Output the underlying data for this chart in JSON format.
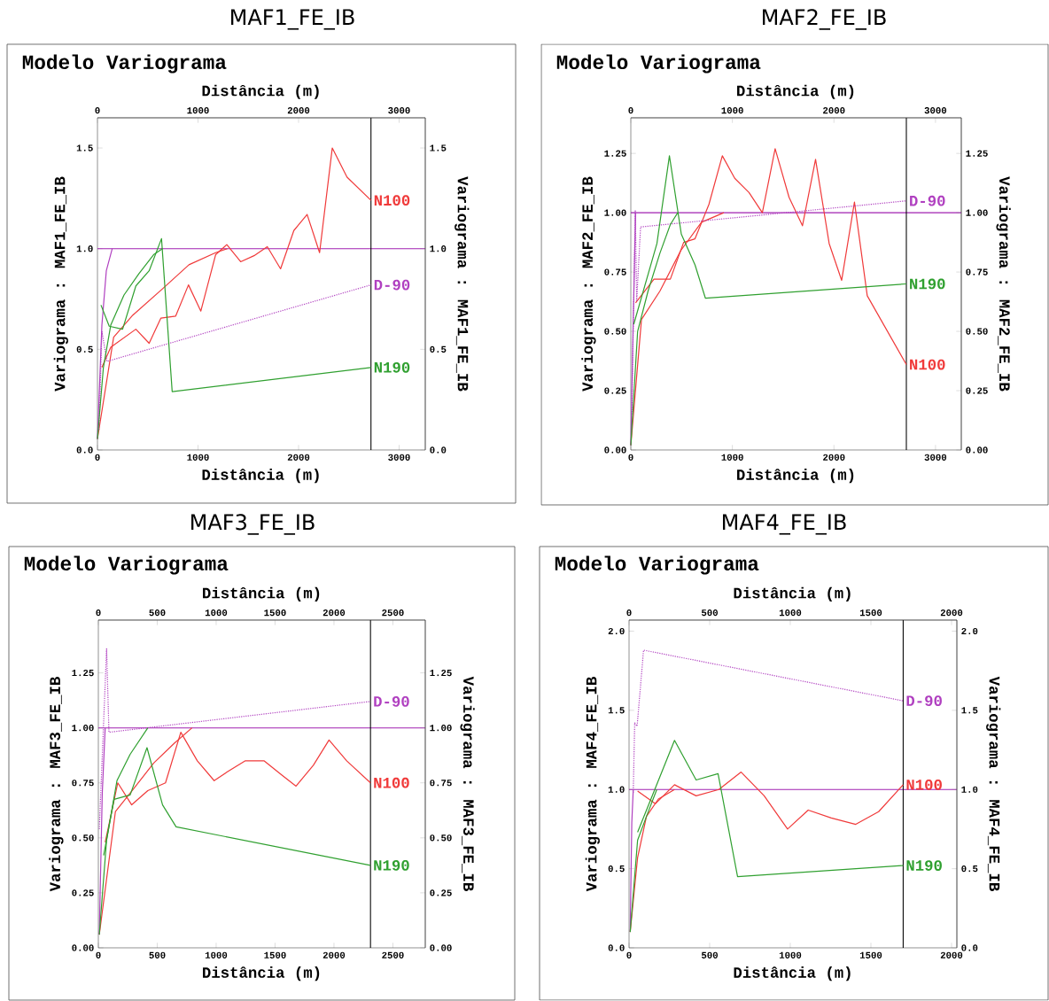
{
  "chart_data": [
    {
      "type": "line",
      "title": "MAF1_FE_IB",
      "subtitle": "Modelo Variograma",
      "xlabel": "Distância (m)",
      "x2label": "Distância (m)",
      "ylabel": "Variograma : MAF1_FE_IB",
      "y2label": "Variograma : MAF1_FE_IB",
      "xlim": [
        0,
        3260
      ],
      "xticks": [
        0,
        1000,
        2000,
        3000
      ],
      "x2lim": [
        0,
        3260
      ],
      "x2ticks": [
        0,
        1000,
        2000,
        3000
      ],
      "ylim": [
        0,
        1.65
      ],
      "yticks": [
        {
          "value": 0,
          "label": "0.0"
        },
        {
          "value": 0.5,
          "label": "0.5"
        },
        {
          "value": 1,
          "label": "1.0"
        },
        {
          "value": 1.5,
          "label": "1.5"
        }
      ],
      "y2lim": [
        0,
        1.65
      ],
      "y2ticks": [
        {
          "value": 0,
          "label": "0.0"
        },
        {
          "value": 0.5,
          "label": "0.5"
        },
        {
          "value": 1,
          "label": "1.0"
        },
        {
          "value": 1.5,
          "label": "1.5"
        }
      ],
      "ref_lines": [
        {
          "axis": "y",
          "value": 1,
          "color": "#a020b0"
        },
        {
          "axis": "x",
          "value": 2720,
          "color": "#000000"
        }
      ],
      "series": [
        {
          "name": "N100",
          "color": "#f03a3a",
          "x": [
            44,
            132,
            382,
            514,
            631,
            778,
            905,
            1028,
            1175,
            1286,
            1424,
            1557,
            1689,
            1821,
            1953,
            2085,
            2209,
            2335,
            2482,
            2720
          ],
          "values": [
            0.41,
            0.51,
            0.6,
            0.53,
            0.655,
            0.665,
            0.82,
            0.69,
            0.97,
            1.02,
            0.935,
            0.965,
            1.01,
            0.9,
            1.09,
            1.17,
            0.98,
            1.5,
            1.355,
            1.24
          ]
        },
        {
          "color": "#f03a3a",
          "x": [
            0,
            161,
            352,
            646,
            910,
            1175,
            1292
          ],
          "values": [
            0.055,
            0.56,
            0.67,
            0.8,
            0.92,
            0.98,
            1.0
          ]
        },
        {
          "name": "D-90",
          "color": "#b040c0",
          "line_style": "dotted",
          "x": [
            15,
            44,
            94,
            2720
          ],
          "values": [
            0.1,
            0.59,
            0.44,
            0.82
          ]
        },
        {
          "color": "#b040c0",
          "x": [
            0,
            44,
            88,
            147
          ],
          "values": [
            0.055,
            0.62,
            0.89,
            1.0
          ]
        },
        {
          "name": "N190",
          "color": "#30a030",
          "x": [
            35,
            117,
            250,
            382,
            514,
            637,
            743,
            2720
          ],
          "values": [
            0.72,
            0.615,
            0.6,
            0.815,
            0.89,
            1.05,
            0.29,
            0.41
          ]
        },
        {
          "color": "#30a030",
          "x": [
            0,
            59,
            132,
            264,
            411,
            558,
            646
          ],
          "values": [
            0.055,
            0.41,
            0.62,
            0.77,
            0.875,
            0.97,
            1.0
          ]
        }
      ]
    },
    {
      "type": "line",
      "title": "MAF2_FE_IB",
      "subtitle": "Modelo Variograma",
      "xlabel": "Distância (m)",
      "x2label": "Distância (m)",
      "ylabel": "Variograma : MAF2_FE_IB",
      "y2label": "Variograma : MAF2_FE_IB",
      "xlim": [
        0,
        3254
      ],
      "xticks": [
        0,
        1000,
        2000,
        3000
      ],
      "x2lim": [
        0,
        3254
      ],
      "x2ticks": [
        0,
        1000,
        2000,
        3000
      ],
      "ylim": [
        0,
        1.4
      ],
      "yticks": [
        {
          "value": 0,
          "label": "0.00"
        },
        {
          "value": 0.25,
          "label": "0.25"
        },
        {
          "value": 0.5,
          "label": "0.50"
        },
        {
          "value": 0.75,
          "label": "0.75"
        },
        {
          "value": 1,
          "label": "1.00"
        },
        {
          "value": 1.25,
          "label": "1.25"
        }
      ],
      "y2lim": [
        0,
        1.4
      ],
      "y2ticks": [
        {
          "value": 0,
          "label": "0.00"
        },
        {
          "value": 0.25,
          "label": "0.25"
        },
        {
          "value": 0.5,
          "label": "0.50"
        },
        {
          "value": 0.75,
          "label": "0.75"
        },
        {
          "value": 1,
          "label": "1.00"
        },
        {
          "value": 1.25,
          "label": "1.25"
        }
      ],
      "ref_lines": [
        {
          "axis": "y",
          "value": 1,
          "color": "#a020b0"
        },
        {
          "axis": "x",
          "value": 2713,
          "color": "#000000"
        }
      ],
      "series": [
        {
          "name": "N100",
          "color": "#f03a3a",
          "x": [
            47,
            228,
            389,
            520,
            632,
            769,
            901,
            1023,
            1164,
            1295,
            1421,
            1558,
            1690,
            1819,
            1953,
            2076,
            2202,
            2328,
            2713
          ],
          "values": [
            0.62,
            0.72,
            0.72,
            0.875,
            0.89,
            1.035,
            1.24,
            1.145,
            1.085,
            1.0,
            1.27,
            1.065,
            0.945,
            1.225,
            0.87,
            0.715,
            1.045,
            0.65,
            0.36
          ]
        },
        {
          "color": "#f03a3a",
          "x": [
            0,
            105,
            287,
            491,
            696,
            915
          ],
          "values": [
            0.02,
            0.55,
            0.67,
            0.84,
            0.96,
            1.0
          ]
        },
        {
          "name": "D-90",
          "color": "#b040c0",
          "line_style": "dotted",
          "x": [
            9,
            44,
            58,
            96,
            2713
          ],
          "values": [
            0.15,
            1.01,
            0.63,
            0.94,
            1.05
          ]
        },
        {
          "color": "#b040c0",
          "x": [
            0,
            23,
            47
          ],
          "values": [
            0.02,
            0.53,
            1.0
          ]
        },
        {
          "name": "N190",
          "color": "#30a030",
          "x": [
            29,
            257,
            380,
            497,
            632,
            734,
            2713
          ],
          "values": [
            0.53,
            0.87,
            1.24,
            0.91,
            0.78,
            0.64,
            0.7
          ]
        },
        {
          "color": "#30a030",
          "x": [
            0,
            67,
            170,
            287,
            389,
            462
          ],
          "values": [
            0.02,
            0.5,
            0.67,
            0.83,
            0.95,
            1.0
          ]
        }
      ]
    },
    {
      "type": "line",
      "title": "MAF3_FE_IB",
      "subtitle": "Modelo Variograma",
      "xlabel": "Distância (m)",
      "x2label": "Distância (m)",
      "ylabel": "Variograma : MAF3_FE_IB",
      "y2label": "Variograma : MAF3_FE_IB",
      "xlim": [
        0,
        2775
      ],
      "xticks": [
        0,
        500,
        1000,
        1500,
        2000,
        2500
      ],
      "x2lim": [
        0,
        2775
      ],
      "x2ticks": [
        0,
        500,
        1000,
        1500,
        2000,
        2500
      ],
      "ylim": [
        0,
        1.49
      ],
      "yticks": [
        {
          "value": 0,
          "label": "0.00"
        },
        {
          "value": 0.25,
          "label": "0.25"
        },
        {
          "value": 0.5,
          "label": "0.50"
        },
        {
          "value": 0.75,
          "label": "0.75"
        },
        {
          "value": 1,
          "label": "1.00"
        },
        {
          "value": 1.25,
          "label": "1.25"
        }
      ],
      "y2lim": [
        0,
        1.49
      ],
      "y2ticks": [
        {
          "value": 0,
          "label": "0.00"
        },
        {
          "value": 0.25,
          "label": "0.25"
        },
        {
          "value": 0.5,
          "label": "0.50"
        },
        {
          "value": 0.75,
          "label": "0.75"
        },
        {
          "value": 1,
          "label": "1.00"
        },
        {
          "value": 1.25,
          "label": "1.25"
        }
      ],
      "ref_lines": [
        {
          "axis": "y",
          "value": 1,
          "color": "#a020b0"
        },
        {
          "axis": "x",
          "value": 2310,
          "color": "#000000"
        }
      ],
      "series": [
        {
          "name": "N100",
          "color": "#f03a3a",
          "x": [
            58,
            165,
            283,
            420,
            570,
            700,
            840,
            983,
            1095,
            1245,
            1408,
            1558,
            1678,
            1825,
            1958,
            2108,
            2310
          ],
          "values": [
            0.48,
            0.75,
            0.65,
            0.715,
            0.75,
            0.98,
            0.85,
            0.76,
            0.8,
            0.85,
            0.85,
            0.785,
            0.735,
            0.83,
            0.945,
            0.85,
            0.75
          ]
        },
        {
          "color": "#f03a3a",
          "x": [
            8,
            145,
            295,
            470,
            645,
            795
          ],
          "values": [
            0.06,
            0.62,
            0.72,
            0.84,
            0.93,
            1.0
          ]
        },
        {
          "name": "D-90",
          "color": "#b040c0",
          "line_style": "dotted",
          "x": [
            8,
            70,
            90,
            2310
          ],
          "values": [
            0.54,
            1.36,
            0.98,
            1.12
          ]
        },
        {
          "color": "#b040c0",
          "x": [
            8,
            33,
            58
          ],
          "values": [
            0.06,
            0.7,
            1.0
          ]
        },
        {
          "name": "N190",
          "color": "#30a030",
          "x": [
            45,
            133,
            270,
            413,
            545,
            660,
            2310
          ],
          "values": [
            0.42,
            0.675,
            0.695,
            0.91,
            0.65,
            0.55,
            0.375
          ]
        },
        {
          "color": "#30a030",
          "x": [
            8,
            70,
            158,
            270,
            420
          ],
          "values": [
            0.06,
            0.49,
            0.76,
            0.88,
            1.0
          ]
        }
      ]
    },
    {
      "type": "line",
      "title": "MAF4_FE_IB",
      "subtitle": "Modelo Variograma",
      "xlabel": "Distância (m)",
      "x2label": "Distância (m)",
      "ylabel": "Variograma : MAF4_FE_IB",
      "y2label": "Variograma : MAF4_FE_IB",
      "xlim": [
        0,
        2033
      ],
      "xticks": [
        0,
        500,
        1000,
        1500,
        2000
      ],
      "x2lim": [
        0,
        2033
      ],
      "x2ticks": [
        0,
        500,
        1000,
        1500,
        2000
      ],
      "ylim": [
        0,
        2.07
      ],
      "yticks": [
        {
          "value": 0,
          "label": "0.0"
        },
        {
          "value": 0.5,
          "label": "0.5"
        },
        {
          "value": 1,
          "label": "1.0"
        },
        {
          "value": 1.5,
          "label": "1.5"
        },
        {
          "value": 2,
          "label": "2.0"
        }
      ],
      "y2lim": [
        0,
        2.07
      ],
      "y2ticks": [
        {
          "value": 0,
          "label": "0.0"
        },
        {
          "value": 0.5,
          "label": "0.5"
        },
        {
          "value": 1,
          "label": "1.0"
        },
        {
          "value": 1.5,
          "label": "1.5"
        },
        {
          "value": 2,
          "label": "2.0"
        }
      ],
      "ref_lines": [
        {
          "axis": "y",
          "value": 1,
          "color": "#a020b0"
        },
        {
          "axis": "x",
          "value": 1700,
          "color": "#000000"
        }
      ],
      "series": [
        {
          "name": "N100",
          "color": "#f03a3a",
          "x": [
            53,
            163,
            282,
            416,
            557,
            695,
            838,
            983,
            1111,
            1254,
            1406,
            1548,
            1700
          ],
          "values": [
            0.99,
            0.91,
            1.03,
            0.96,
            1.0,
            1.11,
            0.96,
            0.75,
            0.87,
            0.82,
            0.78,
            0.86,
            1.03
          ]
        },
        {
          "color": "#f03a3a",
          "x": [
            7,
            53,
            108,
            182,
            282
          ],
          "values": [
            0.1,
            0.57,
            0.83,
            0.94,
            1.0
          ]
        },
        {
          "name": "D-90",
          "color": "#b040c0",
          "line_style": "dotted",
          "x": [
            26,
            35,
            50,
            90,
            1700
          ],
          "values": [
            0.98,
            1.42,
            1.4,
            1.88,
            1.56
          ]
        },
        {
          "color": "#b040c0",
          "x": [
            7,
            17,
            26
          ],
          "values": [
            0.1,
            0.79,
            1.0
          ]
        },
        {
          "name": "N190",
          "color": "#30a030",
          "x": [
            53,
            282,
            416,
            552,
            673,
            1700
          ],
          "values": [
            0.73,
            1.31,
            1.06,
            1.1,
            0.45,
            0.52
          ]
        },
        {
          "color": "#30a030",
          "x": [
            7,
            53,
            108,
            172
          ],
          "values": [
            0.1,
            0.68,
            0.83,
            1.0
          ]
        }
      ]
    }
  ]
}
